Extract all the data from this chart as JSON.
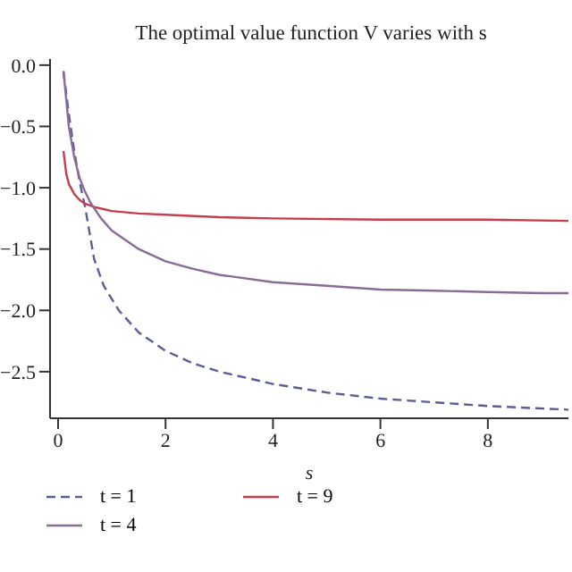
{
  "chart_data": {
    "type": "line",
    "title": "The optimal value function V varies with s",
    "xlabel": "s",
    "xlim": [
      -0.15,
      9.5
    ],
    "ylim": [
      -2.88,
      0.05
    ],
    "xticks": [
      0,
      2,
      4,
      6,
      8
    ],
    "yticks": [
      {
        "value": 0,
        "label": "0.0"
      },
      {
        "value": -0.5,
        "label": "−0.5"
      },
      {
        "value": -1,
        "label": "−1.0"
      },
      {
        "value": -1.5,
        "label": "−1.5"
      },
      {
        "value": -2,
        "label": "−2.0"
      },
      {
        "value": -2.5,
        "label": "−2.5"
      }
    ],
    "grid": false,
    "legend": "bottom",
    "marker": "none",
    "series": [
      {
        "name": "t = 1",
        "color": "#5c5c96",
        "line_style": "dashed",
        "x": [
          0.1,
          0.2,
          0.3,
          0.4,
          0.5,
          0.67,
          0.85,
          1.13,
          1.5,
          2,
          2.5,
          3,
          4,
          5,
          6,
          7,
          8,
          9,
          9.5
        ],
        "values": [
          -0.05,
          -0.4,
          -0.7,
          -0.95,
          -1.15,
          -1.58,
          -1.8,
          -2.0,
          -2.18,
          -2.33,
          -2.43,
          -2.5,
          -2.6,
          -2.67,
          -2.72,
          -2.75,
          -2.78,
          -2.8,
          -2.81
        ]
      },
      {
        "name": "t = 9",
        "color": "#c83c4c",
        "line_style": "solid",
        "x": [
          0.1,
          0.15,
          0.2,
          0.3,
          0.4,
          0.5,
          0.7,
          1,
          1.5,
          2,
          3,
          4,
          6,
          8,
          9.5
        ],
        "values": [
          -0.7,
          -0.88,
          -0.97,
          -1.05,
          -1.1,
          -1.13,
          -1.16,
          -1.19,
          -1.21,
          -1.22,
          -1.24,
          -1.25,
          -1.26,
          -1.26,
          -1.27
        ]
      },
      {
        "name": "t = 4",
        "color": "#8a6a96",
        "line_style": "solid",
        "x": [
          0.1,
          0.2,
          0.3,
          0.4,
          0.5,
          0.6,
          0.8,
          1,
          1.5,
          2,
          2.5,
          3,
          4,
          5,
          6,
          7,
          8,
          9,
          9.5
        ],
        "values": [
          -0.05,
          -0.5,
          -0.75,
          -0.92,
          -1.03,
          -1.12,
          -1.25,
          -1.35,
          -1.5,
          -1.6,
          -1.66,
          -1.71,
          -1.77,
          -1.8,
          -1.83,
          -1.84,
          -1.85,
          -1.86,
          -1.86
        ]
      }
    ]
  }
}
